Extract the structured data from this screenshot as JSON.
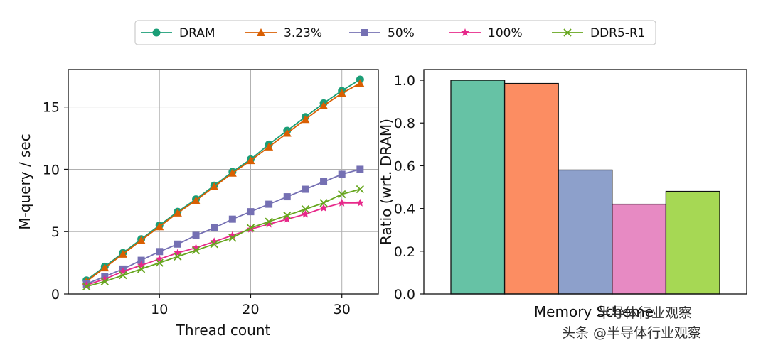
{
  "chart_data": [
    {
      "type": "line",
      "xlabel": "Thread count",
      "ylabel": "M-query / sec",
      "xlim": [
        0,
        34
      ],
      "ylim": [
        0,
        18
      ],
      "xticks": [
        10,
        20,
        30
      ],
      "yticks": [
        0,
        5,
        10,
        15
      ],
      "grid": true,
      "legend": "top-center",
      "x": [
        2,
        4,
        6,
        8,
        10,
        12,
        14,
        16,
        18,
        20,
        22,
        24,
        26,
        28,
        30,
        32
      ],
      "series": [
        {
          "name": "DRAM",
          "color": "#1b9e77",
          "marker": "circle",
          "values": [
            1.1,
            2.2,
            3.3,
            4.4,
            5.5,
            6.6,
            7.6,
            8.7,
            9.8,
            10.8,
            12.0,
            13.1,
            14.2,
            15.3,
            16.3,
            17.2
          ]
        },
        {
          "name": "3.23%",
          "color": "#d95f02",
          "marker": "triangle",
          "values": [
            1.0,
            2.1,
            3.2,
            4.3,
            5.4,
            6.5,
            7.5,
            8.6,
            9.7,
            10.7,
            11.8,
            12.9,
            14.0,
            15.1,
            16.1,
            16.9
          ]
        },
        {
          "name": "50%",
          "color": "#7570b3",
          "marker": "square",
          "values": [
            0.8,
            1.4,
            2.0,
            2.7,
            3.4,
            4.0,
            4.7,
            5.3,
            6.0,
            6.6,
            7.2,
            7.8,
            8.4,
            9.0,
            9.6,
            10.0
          ]
        },
        {
          "name": "100%",
          "color": "#e7298a",
          "marker": "star",
          "values": [
            0.7,
            1.2,
            1.8,
            2.3,
            2.8,
            3.3,
            3.7,
            4.2,
            4.7,
            5.2,
            5.6,
            6.0,
            6.4,
            6.9,
            7.3,
            7.3
          ]
        },
        {
          "name": "DDR5-R1",
          "color": "#66a61e",
          "marker": "x",
          "values": [
            0.6,
            1.0,
            1.5,
            2.0,
            2.5,
            3.0,
            3.5,
            4.0,
            4.5,
            5.3,
            5.8,
            6.3,
            6.8,
            7.3,
            8.0,
            8.4
          ]
        }
      ]
    },
    {
      "type": "bar",
      "xlabel": "Memory Scheme",
      "ylabel": "Ratio (wrt. DRAM)",
      "ylim": [
        0,
        1.05
      ],
      "yticks": [
        "0.0",
        "0.2",
        "0.4",
        "0.6",
        "0.8",
        "1.0"
      ],
      "grid": false,
      "categories": [
        "DRAM",
        "3.23%",
        "50%",
        "100%",
        "DDR5-R1"
      ],
      "values": [
        1.0,
        0.985,
        0.58,
        0.42,
        0.48
      ],
      "colors": [
        "#66c2a5",
        "#fc8d62",
        "#8da0cb",
        "#e78ac3",
        "#a6d854"
      ]
    }
  ],
  "watermark": {
    "text": "头条 @半导体行业观察",
    "overlay_text": "半导体行业观察"
  }
}
